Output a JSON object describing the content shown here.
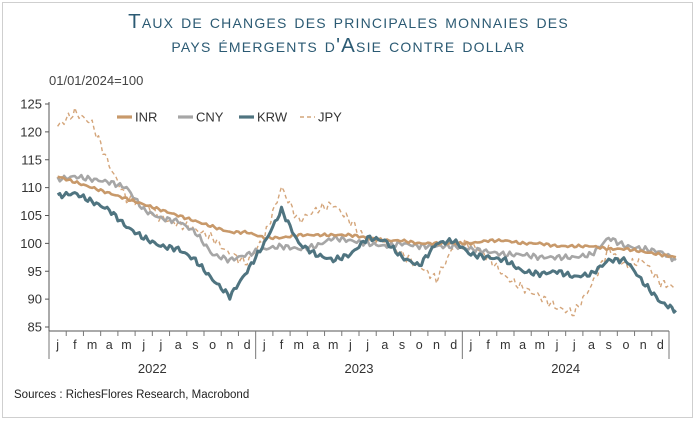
{
  "title_line1": "Taux de changes des principales monnaies des",
  "title_line2": "pays émergents d'Asie contre dollar",
  "index_note": "01/01/2024=100",
  "sources": "Sources : RichesFlores Research, Macrobond",
  "colors": {
    "INR": "#c8996a",
    "CNY": "#a6a6a6",
    "KRW": "#4f7480",
    "JPY": "#d4a57a"
  },
  "chart_data": {
    "type": "line",
    "title": "Taux de changes des principales monnaies des pays émergents d'Asie contre dollar",
    "ylabel": "01/01/2024=100",
    "ylim": [
      85,
      125
    ],
    "yticks": [
      85,
      90,
      95,
      100,
      105,
      110,
      115,
      120,
      125
    ],
    "month_labels": [
      "j",
      "f",
      "m",
      "a",
      "m",
      "j",
      "j",
      "a",
      "s",
      "o",
      "n",
      "d",
      "j",
      "f",
      "m",
      "a",
      "m",
      "j",
      "j",
      "a",
      "s",
      "o",
      "n",
      "d",
      "j",
      "f",
      "m",
      "a",
      "m",
      "j",
      "j",
      "a",
      "s",
      "o",
      "n",
      "d"
    ],
    "year_labels": [
      "2022",
      "2023",
      "2024"
    ],
    "x": [
      0,
      1,
      2,
      3,
      4,
      5,
      6,
      7,
      8,
      9,
      10,
      11,
      12,
      13,
      14,
      15,
      16,
      17,
      18,
      19,
      20,
      21,
      22,
      23,
      24,
      25,
      26,
      27,
      28,
      29,
      30,
      31,
      32,
      33,
      34,
      35,
      35.9
    ],
    "legend_placement": "top-left",
    "series": [
      {
        "name": "INR",
        "style": "solid",
        "values": [
          112,
          111,
          110,
          109,
          108,
          107,
          106,
          105,
          104,
          103,
          102,
          102,
          101,
          101,
          101.5,
          101.5,
          101.5,
          101.5,
          101,
          100.5,
          100.5,
          100,
          100,
          100,
          100,
          100.5,
          100.5,
          100,
          100,
          99.5,
          99.5,
          99.5,
          99,
          99,
          98.5,
          98,
          97.5
        ]
      },
      {
        "name": "CNY",
        "style": "solid",
        "values": [
          111.5,
          112,
          111.5,
          111,
          110,
          106,
          104.5,
          104,
          102,
          98,
          97,
          98,
          99,
          99.5,
          99,
          99.5,
          101,
          100.5,
          100,
          99.5,
          100,
          99.5,
          99.5,
          99.5,
          99,
          98.5,
          98,
          98,
          97.5,
          97.5,
          97.5,
          98,
          101,
          99.5,
          99,
          98.5,
          97
        ]
      },
      {
        "name": "KRW",
        "style": "solid",
        "values": [
          108.5,
          109,
          107.5,
          106,
          103,
          101,
          99.5,
          99,
          97,
          93.5,
          90.5,
          95,
          100,
          106,
          100,
          98,
          97,
          98,
          101,
          100.5,
          97.5,
          96,
          100,
          100.5,
          98,
          97.5,
          97,
          95,
          94.5,
          95,
          94,
          94.5,
          97,
          97,
          93,
          89.5,
          88
        ]
      },
      {
        "name": "JPY",
        "style": "dashed",
        "values": [
          121,
          123.5,
          121.5,
          114,
          108,
          107,
          104.5,
          103.5,
          102.5,
          101,
          98,
          96.5,
          101,
          110,
          104,
          106,
          107,
          104,
          100.5,
          100,
          98,
          96,
          93.5,
          99.5,
          100,
          97.5,
          94,
          92,
          90.5,
          88.5,
          87.5,
          92.5,
          99,
          96,
          97,
          93,
          92
        ]
      }
    ]
  }
}
